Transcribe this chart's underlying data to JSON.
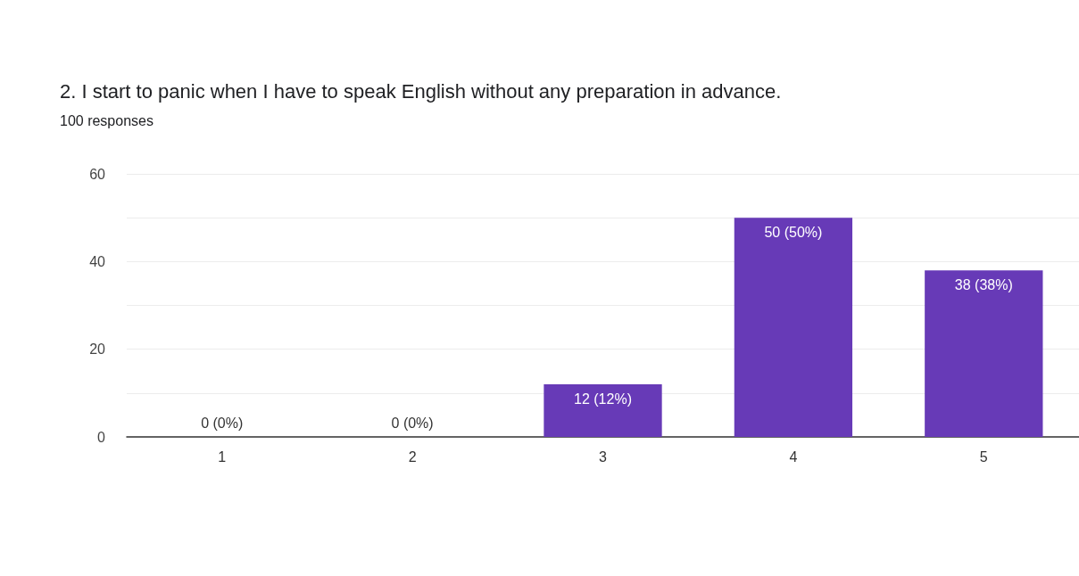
{
  "chart_data": {
    "type": "bar",
    "title": "2. I start to panic when I have to speak English without any preparation in advance.",
    "subtitle": "100 responses",
    "categories": [
      "1",
      "2",
      "3",
      "4",
      "5"
    ],
    "values": [
      0,
      0,
      12,
      50,
      38
    ],
    "value_labels": [
      "0 (0%)",
      "0 (0%)",
      "12 (12%)",
      "50 (50%)",
      "38 (38%)"
    ],
    "color": "#673ab7",
    "ylim": [
      0,
      60
    ],
    "yticks": [
      0,
      {
        "value": 10,
        "label": null
      },
      20,
      {
        "value": 30,
        "label": null
      },
      40,
      {
        "value": 50,
        "label": null
      },
      60
    ],
    "grid": "y"
  }
}
